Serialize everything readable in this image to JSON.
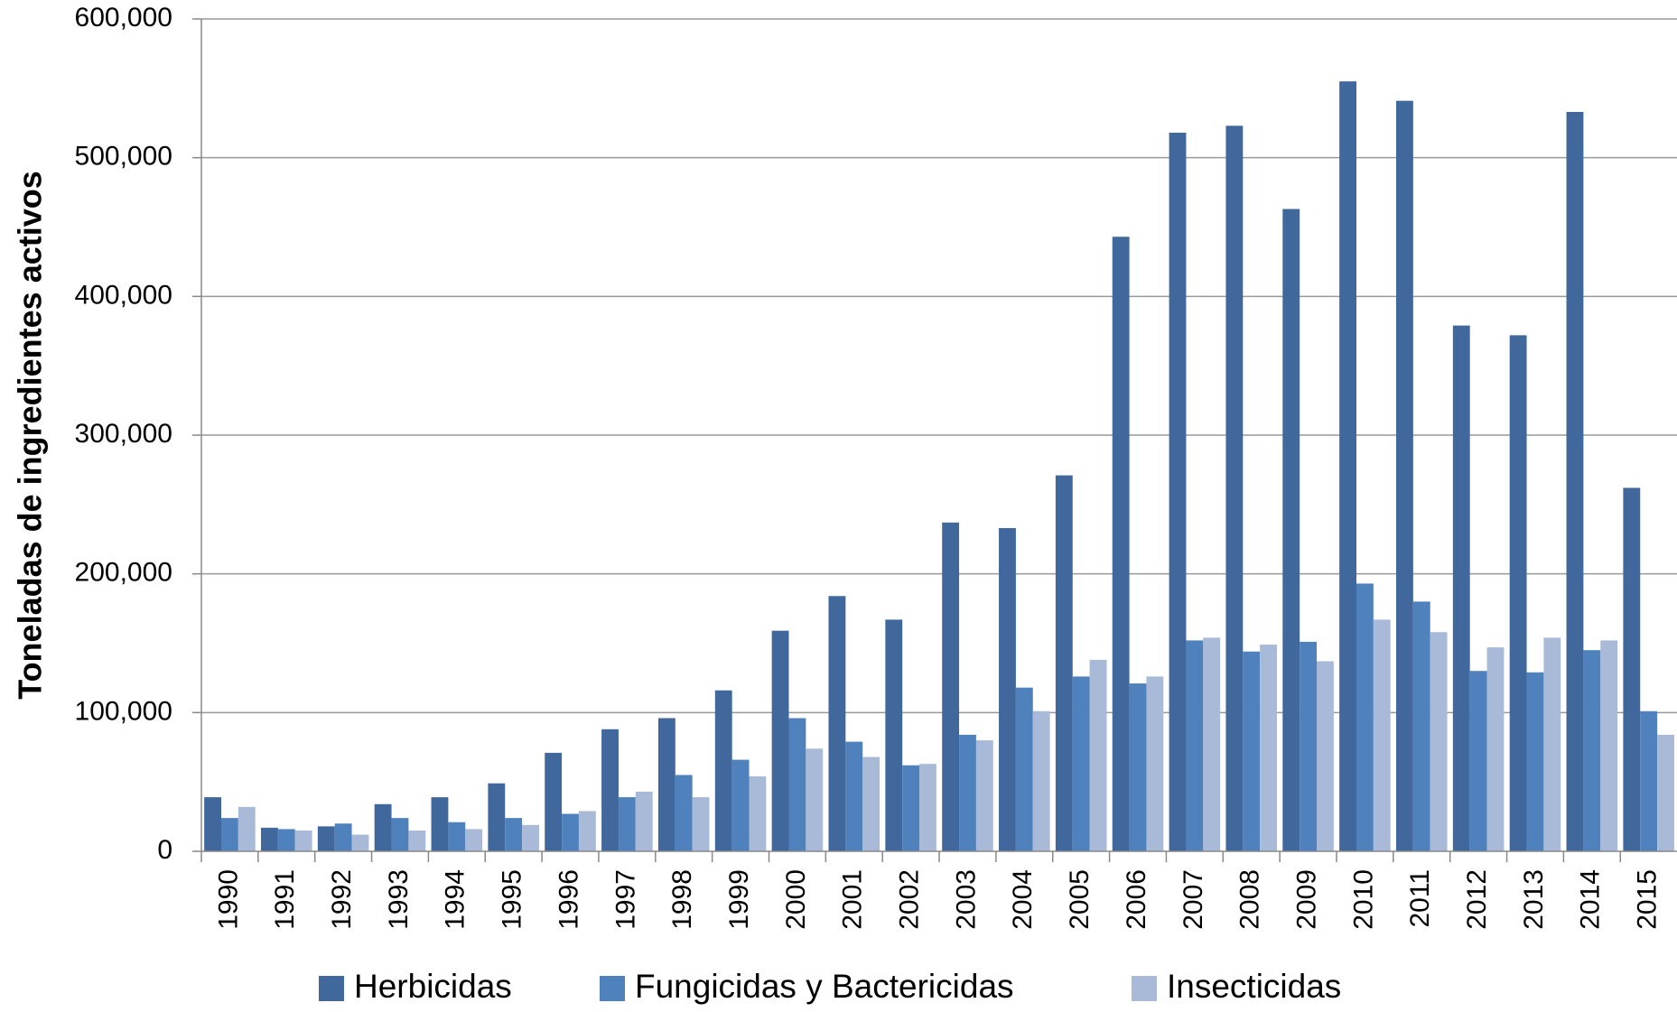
{
  "chart_data": {
    "type": "bar",
    "y_label": "Toneladas de ingredientes activos",
    "categories": [
      "1990",
      "1991",
      "1992",
      "1993",
      "1994",
      "1995",
      "1996",
      "1997",
      "1998",
      "1999",
      "2000",
      "2001",
      "2002",
      "2003",
      "2004",
      "2005",
      "2006",
      "2007",
      "2008",
      "2009",
      "2010",
      "2011",
      "2012",
      "2013",
      "2014",
      "2015"
    ],
    "series": [
      {
        "name": "Herbicidas",
        "color": "#41689c",
        "values": [
          39000,
          17000,
          18000,
          34000,
          39000,
          49000,
          71000,
          88000,
          96000,
          116000,
          159000,
          184000,
          167000,
          237000,
          233000,
          271000,
          443000,
          518000,
          523000,
          463000,
          555000,
          541000,
          379000,
          372000,
          533000,
          262000
        ]
      },
      {
        "name": "Fungicidas y Bactericidas",
        "color": "#4f81bd",
        "values": [
          24000,
          16000,
          20000,
          24000,
          21000,
          24000,
          27000,
          39000,
          55000,
          66000,
          96000,
          79000,
          62000,
          84000,
          118000,
          126000,
          121000,
          152000,
          144000,
          151000,
          193000,
          180000,
          130000,
          129000,
          145000,
          101000
        ]
      },
      {
        "name": "Insecticidas",
        "color": "#a9b9d8",
        "values": [
          32000,
          15000,
          12000,
          15000,
          16000,
          19000,
          29000,
          43000,
          39000,
          54000,
          74000,
          68000,
          63000,
          80000,
          101000,
          138000,
          126000,
          154000,
          149000,
          137000,
          167000,
          158000,
          147000,
          154000,
          152000,
          84000
        ]
      }
    ],
    "ylim": [
      0,
      600000
    ],
    "yticks": [
      0,
      {
        "value": 100000,
        "label": "100,000"
      },
      {
        "value": 200000,
        "label": "200,000"
      },
      {
        "value": 300000,
        "label": "300,000"
      },
      {
        "value": 400000,
        "label": "400,000"
      },
      {
        "value": 500000,
        "label": "500,000"
      },
      {
        "value": 600000,
        "label": "600,000"
      }
    ],
    "grid": true,
    "legend": "bottom"
  }
}
